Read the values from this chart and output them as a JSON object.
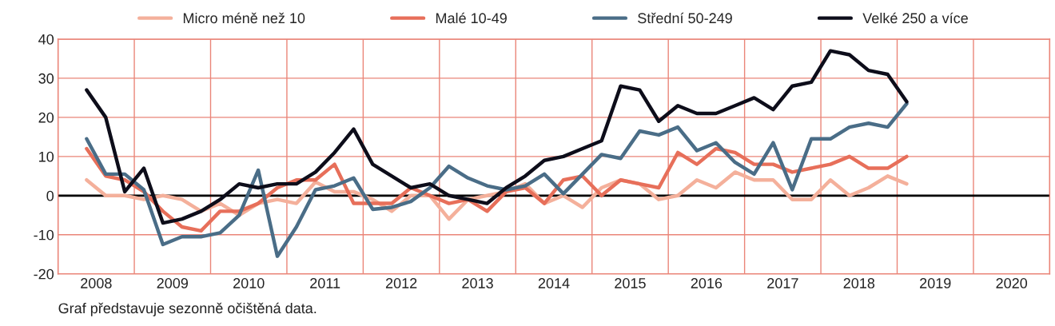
{
  "chart_data": {
    "type": "line",
    "x": [
      2008.375,
      2008.625,
      2008.875,
      2009.125,
      2009.375,
      2009.625,
      2009.875,
      2010.125,
      2010.375,
      2010.625,
      2010.875,
      2011.125,
      2011.375,
      2011.625,
      2011.875,
      2012.125,
      2012.375,
      2012.625,
      2012.875,
      2013.125,
      2013.375,
      2013.625,
      2013.875,
      2014.125,
      2014.375,
      2014.625,
      2014.875,
      2015.125,
      2015.375,
      2015.625,
      2015.875,
      2016.125,
      2016.375,
      2016.625,
      2016.875,
      2017.125,
      2017.375,
      2017.625,
      2017.875,
      2018.125,
      2018.375,
      2018.625,
      2018.875,
      2019.125
    ],
    "series": [
      {
        "name": "Micro méně než 10",
        "color": "#f4b09b",
        "values": [
          4,
          0,
          0,
          -1,
          0,
          -1,
          -4,
          -2,
          -5,
          -2,
          -1,
          -2,
          3.5,
          1,
          1,
          -1,
          -4,
          0,
          0,
          -6,
          -1,
          0,
          1,
          3,
          -2,
          0,
          -3,
          2,
          4,
          3,
          -1,
          0,
          4,
          2,
          6,
          4,
          4,
          -1,
          -1,
          4,
          0,
          2,
          5,
          3
        ]
      },
      {
        "name": "Malé 10-49",
        "color": "#e76f5a",
        "values": [
          12,
          5,
          4,
          1,
          -4,
          -8,
          -9,
          -4,
          -4,
          -2,
          2,
          4,
          4,
          8,
          -2,
          -2,
          -2,
          2,
          0,
          -2,
          -1,
          -4,
          1,
          2,
          -2,
          4,
          5,
          0,
          4,
          3,
          2,
          11,
          8,
          12,
          11,
          8,
          8,
          6,
          7,
          8,
          10,
          7,
          7,
          10
        ]
      },
      {
        "name": "Střední 50-249",
        "color": "#4a6d87",
        "values": [
          14.5,
          5.5,
          5.5,
          1.5,
          -12.5,
          -10.5,
          -10.5,
          -9.5,
          -5,
          6.5,
          -15.5,
          -8,
          1.5,
          2.5,
          4.5,
          -3.5,
          -3,
          -1.5,
          2,
          7.5,
          4.5,
          2.5,
          1.5,
          2.5,
          5.5,
          0.5,
          5.5,
          10.5,
          9.5,
          16.5,
          15.5,
          17.5,
          11.5,
          13.5,
          8.5,
          5.5,
          13.5,
          1.5,
          14.5,
          14.5,
          17.5,
          18.5,
          17.5,
          23.5
        ]
      },
      {
        "name": "Velké 250 a více",
        "color": "#0d0d1a",
        "values": [
          27,
          20,
          1,
          7,
          -7,
          -6,
          -4,
          -1,
          3,
          2,
          3,
          3,
          6,
          11,
          17,
          8,
          5,
          2,
          3,
          0,
          -1,
          -2,
          2,
          5,
          9,
          10,
          12,
          14,
          28,
          27,
          19,
          23,
          21,
          21,
          23,
          25,
          22,
          28,
          29,
          37,
          36,
          32,
          31,
          24
        ]
      }
    ],
    "xlim": [
      2008,
      2021
    ],
    "xticks": [
      {
        "value": 2008,
        "label": null
      },
      {
        "value": 2008.5,
        "label": "2008"
      },
      {
        "value": 2009,
        "label": null
      },
      {
        "value": 2009.5,
        "label": "2009"
      },
      {
        "value": 2010,
        "label": null
      },
      {
        "value": 2010.5,
        "label": "2010"
      },
      {
        "value": 2011,
        "label": null
      },
      {
        "value": 2011.5,
        "label": "2011"
      },
      {
        "value": 2012,
        "label": null
      },
      {
        "value": 2012.5,
        "label": "2012"
      },
      {
        "value": 2013,
        "label": null
      },
      {
        "value": 2013.5,
        "label": "2013"
      },
      {
        "value": 2014,
        "label": null
      },
      {
        "value": 2014.5,
        "label": "2014"
      },
      {
        "value": 2015,
        "label": null
      },
      {
        "value": 2015.5,
        "label": "2015"
      },
      {
        "value": 2016,
        "label": null
      },
      {
        "value": 2016.5,
        "label": "2016"
      },
      {
        "value": 2017,
        "label": null
      },
      {
        "value": 2017.5,
        "label": "2017"
      },
      {
        "value": 2018,
        "label": null
      },
      {
        "value": 2018.5,
        "label": "2018"
      },
      {
        "value": 2019,
        "label": null
      },
      {
        "value": 2019.5,
        "label": "2019"
      },
      {
        "value": 2020,
        "label": null
      },
      {
        "value": 2020.5,
        "label": "2020"
      },
      {
        "value": 2021,
        "label": null
      }
    ],
    "ylim": [
      -20,
      40
    ],
    "yticks": [
      -20,
      -10,
      0,
      10,
      20,
      30,
      40
    ],
    "ref_lines": [
      {
        "axis": "y",
        "value": 0,
        "color": "#000000"
      }
    ],
    "grid": true,
    "legend": "top",
    "marker": "none",
    "line_style": "solid",
    "annotations": [
      "Graf představuje sezonně očištěná data."
    ]
  }
}
